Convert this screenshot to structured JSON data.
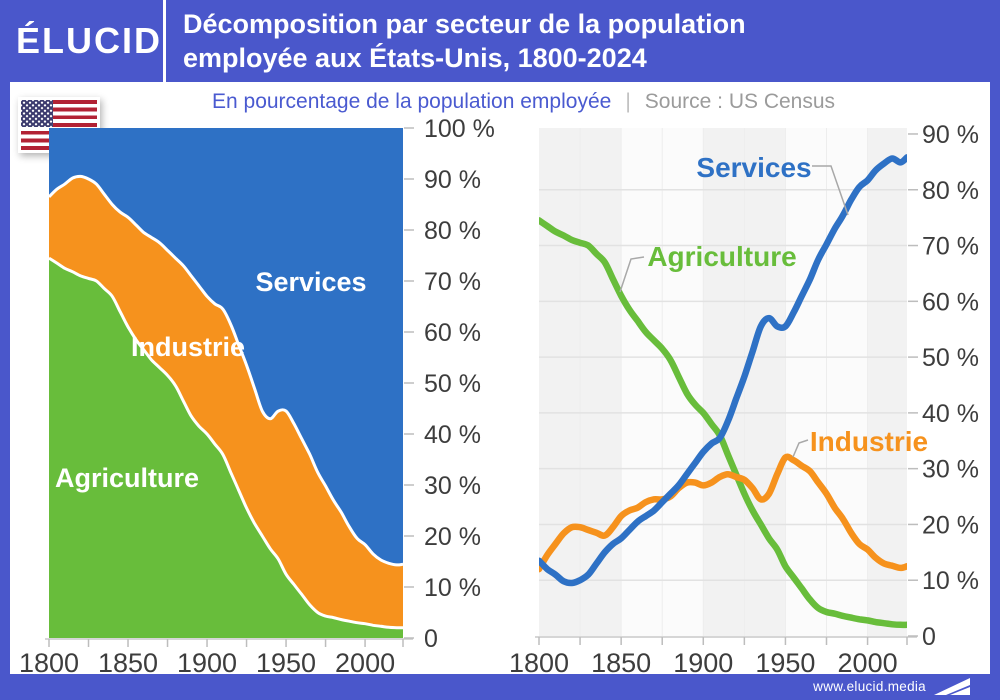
{
  "header": {
    "logo": "ÉLUCID",
    "title_line1": "Décomposition par secteur de la population",
    "title_line2": "employée aux États-Unis, 1800-2024"
  },
  "subtitle": {
    "text": "En pourcentage de la population employée",
    "separator": "|",
    "source": "Source : US Census"
  },
  "footer": {
    "url": "www.elucid.media"
  },
  "colors": {
    "frame": "#4a57cb",
    "chart_blue": "#2e71c5",
    "chart_orange": "#f6921d",
    "chart_green": "#68bd3b",
    "subtitle_blue": "#4a5ad0",
    "source_gray": "#9b9b9b",
    "axis_text": "#3d3d3d",
    "grid": "#e2e2e2",
    "band_gray": "#f2f2f2",
    "band_light": "#fbfbfb",
    "tick": "#bdbdbd",
    "axis_line": "#c9c9c9",
    "leader": "#a8a8a8",
    "area_border": "#ffffff"
  },
  "chart_data": [
    {
      "type": "area",
      "stacked": true,
      "title": "Décomposition par secteur de la population employée aux États-Unis, 1800-2024",
      "xlabel": "",
      "ylabel": "En pourcentage de la population employée",
      "ylim": [
        0,
        100
      ],
      "xlim": [
        1800,
        2024
      ],
      "grid": false,
      "legend_position": "inside-areas",
      "x": [
        1800,
        1805,
        1810,
        1815,
        1820,
        1825,
        1830,
        1835,
        1840,
        1845,
        1850,
        1855,
        1860,
        1865,
        1870,
        1875,
        1880,
        1885,
        1890,
        1895,
        1900,
        1905,
        1910,
        1915,
        1920,
        1925,
        1930,
        1935,
        1940,
        1945,
        1950,
        1955,
        1960,
        1965,
        1970,
        1975,
        1980,
        1985,
        1990,
        1995,
        2000,
        2005,
        2010,
        2015,
        2020,
        2024
      ],
      "series": [
        {
          "name": "Agriculture",
          "color": "#68bd3b",
          "values": [
            74.5,
            73.5,
            72.5,
            71.8,
            71,
            70.5,
            70,
            68.5,
            67,
            64,
            61,
            58.5,
            56.5,
            54.5,
            53,
            51.5,
            49.5,
            46.5,
            43.5,
            41.5,
            40,
            38,
            36,
            32.5,
            29,
            25.5,
            22.5,
            20,
            17.5,
            15.5,
            12.5,
            10.5,
            8.5,
            6.5,
            5,
            4.3,
            4,
            3.6,
            3.3,
            3,
            2.8,
            2.5,
            2.3,
            2.1,
            2,
            2
          ]
        },
        {
          "name": "Industrie",
          "color": "#f6921d",
          "values": [
            12,
            14.5,
            16.5,
            18.4,
            19.5,
            19.5,
            19,
            18.5,
            18,
            19.5,
            21.5,
            22.5,
            23,
            24,
            24.5,
            24.5,
            25,
            26.5,
            27.5,
            27.5,
            27,
            27.5,
            28.5,
            29,
            28.5,
            28,
            26.5,
            24.5,
            25.5,
            29,
            32,
            31.5,
            30.5,
            29.5,
            27.5,
            25.5,
            23,
            21,
            18.5,
            16.5,
            15.5,
            14,
            13,
            12.6,
            12.2,
            12.5
          ]
        },
        {
          "name": "Services",
          "color": "#2e71c5",
          "values": [
            13.5,
            12,
            11,
            9.8,
            9.5,
            10,
            11,
            13,
            15,
            16.5,
            17.5,
            19,
            20.5,
            21.5,
            22.5,
            24,
            25.5,
            27,
            29,
            31,
            33,
            34.5,
            35.5,
            38.5,
            42.5,
            46.5,
            51,
            55.5,
            57,
            55.5,
            55.5,
            58,
            61,
            64,
            67.5,
            70.2,
            73,
            75.4,
            78.2,
            80.5,
            81.7,
            83.5,
            84.7,
            85.6,
            84.9,
            85.8
          ]
        }
      ],
      "y_tick_labels": [
        "0",
        "10 %",
        "20 %",
        "30 %",
        "40 %",
        "50 %",
        "60 %",
        "70 %",
        "80 %",
        "90 %",
        "100 %"
      ],
      "x_tick_labels": [
        "1800",
        "1850",
        "1900",
        "1950",
        "2000"
      ]
    },
    {
      "type": "line",
      "title": "",
      "xlabel": "",
      "ylabel": "En pourcentage de la population employée",
      "ylim": [
        0,
        90
      ],
      "xlim": [
        1800,
        2024
      ],
      "grid": true,
      "legend_position": "callouts",
      "background_bands_years": [
        [
          1800,
          1850
        ],
        [
          1900,
          1950
        ],
        [
          2000,
          2024
        ]
      ],
      "x": [
        1800,
        1805,
        1810,
        1815,
        1820,
        1825,
        1830,
        1835,
        1840,
        1845,
        1850,
        1855,
        1860,
        1865,
        1870,
        1875,
        1880,
        1885,
        1890,
        1895,
        1900,
        1905,
        1910,
        1915,
        1920,
        1925,
        1930,
        1935,
        1940,
        1945,
        1950,
        1955,
        1960,
        1965,
        1970,
        1975,
        1980,
        1985,
        1990,
        1995,
        2000,
        2005,
        2010,
        2015,
        2020,
        2024
      ],
      "series": [
        {
          "name": "Agriculture",
          "color": "#68bd3b",
          "values": [
            74.5,
            73.5,
            72.5,
            71.8,
            71,
            70.5,
            70,
            68.5,
            67,
            64,
            61,
            58.5,
            56.5,
            54.5,
            53,
            51.5,
            49.5,
            46.5,
            43.5,
            41.5,
            40,
            38,
            36,
            32.5,
            29,
            25.5,
            22.5,
            20,
            17.5,
            15.5,
            12.5,
            10.5,
            8.5,
            6.5,
            5,
            4.3,
            4,
            3.6,
            3.3,
            3,
            2.8,
            2.5,
            2.3,
            2.1,
            2,
            2
          ]
        },
        {
          "name": "Industrie",
          "color": "#f6921d",
          "values": [
            12,
            14.5,
            16.5,
            18.4,
            19.5,
            19.5,
            19,
            18.5,
            18,
            19.5,
            21.5,
            22.5,
            23,
            24,
            24.5,
            24.5,
            25,
            26.5,
            27.5,
            27.5,
            27,
            27.5,
            28.5,
            29,
            28.5,
            28,
            26.5,
            24.5,
            25.5,
            29,
            32,
            31.5,
            30.5,
            29.5,
            27.5,
            25.5,
            23,
            21,
            18.5,
            16.5,
            15.5,
            14,
            13,
            12.6,
            12.2,
            12.5
          ]
        },
        {
          "name": "Services",
          "color": "#2e71c5",
          "values": [
            13.5,
            12,
            11,
            9.8,
            9.5,
            10,
            11,
            13,
            15,
            16.5,
            17.5,
            19,
            20.5,
            21.5,
            22.5,
            24,
            25.5,
            27,
            29,
            31,
            33,
            34.5,
            35.5,
            38.5,
            42.5,
            46.5,
            51,
            55.5,
            57,
            55.5,
            55.5,
            58,
            61,
            64,
            67.5,
            70.2,
            73,
            75.4,
            78.2,
            80.5,
            81.7,
            83.5,
            84.7,
            85.6,
            84.9,
            85.8
          ]
        }
      ],
      "y_tick_labels": [
        "0",
        "10 %",
        "20 %",
        "30 %",
        "40 %",
        "50 %",
        "60 %",
        "70 %",
        "80 %",
        "90 %"
      ],
      "x_tick_labels": [
        "1800",
        "1850",
        "1900",
        "1950",
        "2000"
      ]
    }
  ]
}
